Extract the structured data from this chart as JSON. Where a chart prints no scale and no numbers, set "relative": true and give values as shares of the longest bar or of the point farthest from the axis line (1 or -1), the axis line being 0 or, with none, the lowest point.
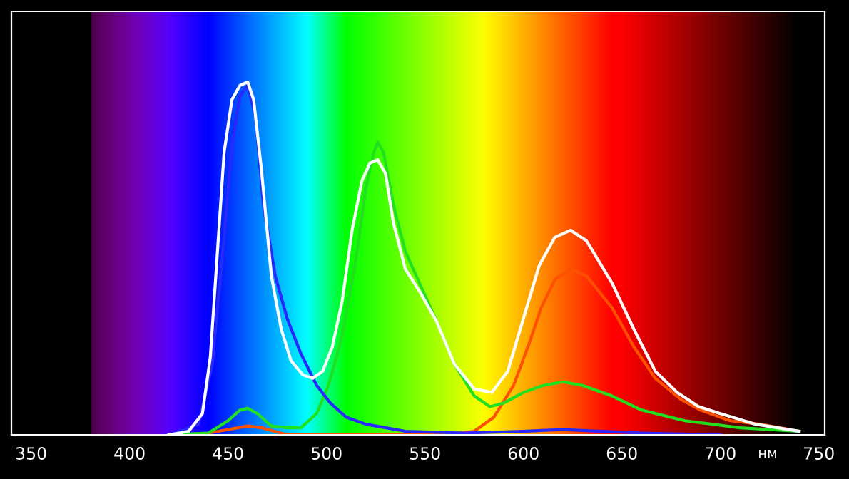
{
  "chart_data": {
    "type": "line",
    "relative": true,
    "xlabel": "нм",
    "xlim": [
      340,
      753
    ],
    "xticks": [
      350,
      400,
      450,
      500,
      550,
      600,
      650,
      700,
      750
    ],
    "grid": false,
    "legend": false,
    "marker": "none",
    "line_style": "solid",
    "series": [
      {
        "color": "#ff5000",
        "x": [
          420,
          440,
          455,
          460,
          467,
          480,
          560,
          575,
          585,
          595,
          603,
          609,
          616,
          624,
          632,
          645,
          656,
          667,
          680,
          690,
          705,
          720,
          740
        ],
        "values": [
          0,
          0.005,
          0.02,
          0.025,
          0.02,
          0,
          0,
          0.01,
          0.05,
          0.14,
          0.26,
          0.36,
          0.44,
          0.47,
          0.45,
          0.36,
          0.25,
          0.16,
          0.1,
          0.07,
          0.04,
          0.03,
          0.01
        ]
      },
      {
        "color": "#20e020",
        "x": [
          420,
          440,
          450,
          456,
          460,
          465,
          472,
          480,
          487,
          495,
          501,
          508,
          515,
          520,
          524,
          526,
          529,
          534,
          540,
          548,
          556,
          565,
          575,
          583,
          590,
          600,
          610,
          620,
          630,
          645,
          660,
          682,
          710,
          740
        ],
        "values": [
          0,
          0.005,
          0.04,
          0.07,
          0.075,
          0.06,
          0.025,
          0.02,
          0.02,
          0.06,
          0.14,
          0.28,
          0.5,
          0.7,
          0.8,
          0.83,
          0.8,
          0.65,
          0.52,
          0.42,
          0.32,
          0.2,
          0.11,
          0.08,
          0.09,
          0.12,
          0.14,
          0.15,
          0.14,
          0.11,
          0.07,
          0.04,
          0.02,
          0.01
        ]
      },
      {
        "color": "#2828ff",
        "x": [
          420,
          435,
          442,
          447,
          452,
          456,
          460,
          464,
          468,
          474,
          480,
          487,
          495,
          502,
          510,
          520,
          540,
          570,
          600,
          620,
          640,
          660,
          700
        ],
        "values": [
          0,
          0.03,
          0.2,
          0.5,
          0.82,
          0.96,
          0.99,
          0.9,
          0.65,
          0.45,
          0.33,
          0.23,
          0.14,
          0.09,
          0.05,
          0.03,
          0.01,
          0.005,
          0.01,
          0.015,
          0.01,
          0.005,
          0
        ]
      },
      {
        "color": "#ffffff",
        "x": [
          420,
          430,
          437,
          441,
          445,
          448,
          452,
          456,
          460,
          463,
          467,
          472,
          477,
          482,
          488,
          493,
          498,
          503,
          508,
          513,
          518,
          522,
          526,
          530,
          534,
          540,
          548,
          556,
          565,
          575,
          584,
          592,
          600,
          608,
          616,
          624,
          632,
          645,
          656,
          667,
          678,
          689,
          700,
          718,
          740
        ],
        "values": [
          0,
          0.01,
          0.06,
          0.22,
          0.55,
          0.8,
          0.95,
          0.99,
          1.0,
          0.95,
          0.75,
          0.45,
          0.3,
          0.21,
          0.17,
          0.16,
          0.18,
          0.25,
          0.38,
          0.58,
          0.72,
          0.77,
          0.78,
          0.74,
          0.6,
          0.47,
          0.4,
          0.32,
          0.2,
          0.13,
          0.12,
          0.18,
          0.33,
          0.48,
          0.56,
          0.58,
          0.55,
          0.43,
          0.3,
          0.18,
          0.12,
          0.08,
          0.06,
          0.03,
          0.01
        ]
      }
    ]
  }
}
